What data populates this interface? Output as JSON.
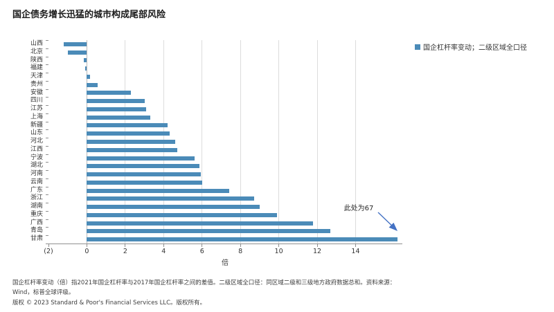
{
  "title": "国企债务增长迅猛的城市构成尾部风险",
  "legend": {
    "label": "国企杠杆率变动；二级区域全口径",
    "marker_color": "#4B8BB8"
  },
  "chart_data": {
    "type": "bar",
    "orientation": "horizontal",
    "title": "国企债务增长迅猛的城市构成尾部风险",
    "xlabel": "倍",
    "ylabel": "",
    "xlim": [
      -2,
      16.4
    ],
    "grid": "vertical",
    "legend_position": "top-right",
    "bar_color": "#4B8BB8",
    "categories": [
      "山西",
      "北京",
      "陕西",
      "福建",
      "天津",
      "贵州",
      "安徽",
      "四川",
      "江苏",
      "上海",
      "新疆",
      "山东",
      "河北",
      "江西",
      "宁波",
      "湖北",
      "河南",
      "云南",
      "广东",
      "浙江",
      "湖南",
      "重庆",
      "广西",
      "青岛",
      "甘肃"
    ],
    "values": [
      -1.2,
      -1.0,
      -0.15,
      -0.1,
      0.15,
      0.55,
      2.3,
      3.0,
      3.1,
      3.3,
      4.2,
      4.3,
      4.6,
      4.7,
      5.6,
      5.85,
      5.95,
      6.0,
      7.4,
      8.7,
      9.0,
      9.9,
      11.8,
      12.7,
      16.2
    ],
    "x_ticks": [
      {
        "value": -2,
        "label": "(2)",
        "gridline": false
      },
      {
        "value": 0,
        "label": "0",
        "gridline": true
      },
      {
        "value": 2,
        "label": "2",
        "gridline": true
      },
      {
        "value": 4,
        "label": "4",
        "gridline": true
      },
      {
        "value": 6,
        "label": "6",
        "gridline": true
      },
      {
        "value": 8,
        "label": "8",
        "gridline": true
      },
      {
        "value": 10,
        "label": "10",
        "gridline": true
      },
      {
        "value": 12,
        "label": "12",
        "gridline": true
      },
      {
        "value": 14,
        "label": "14",
        "gridline": true
      }
    ],
    "annotation": {
      "text": "此处为67",
      "target_category": "甘肃",
      "arrow_color": "#4472C4"
    }
  },
  "footnotes": {
    "line1": "国企杠杆率变动（倍）指2021年国企杠杆率与2017年国企杠杆率之间的差值。二级区域全口径：同区域二级和三级地方政府数据总和。资料来源：",
    "line2": "Wind，标普全球评级。",
    "copyright": "版权 © 2023 Standard & Poor's Financial Services LLC。版权所有。"
  }
}
